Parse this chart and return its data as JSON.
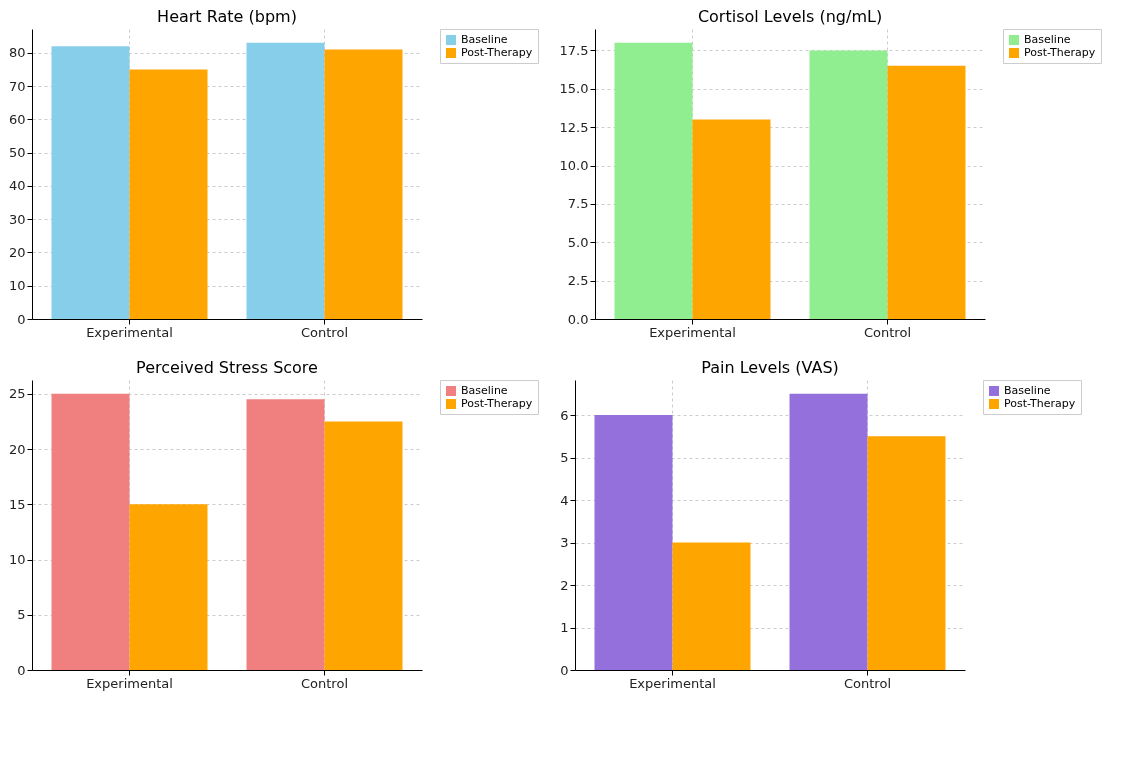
{
  "chart_data": [
    {
      "type": "bar",
      "title": "Heart Rate (bpm)",
      "categories": [
        "Experimental",
        "Control"
      ],
      "series": [
        {
          "name": "Baseline",
          "color": "#87ceeb",
          "values": [
            82,
            83
          ]
        },
        {
          "name": "Post-Therapy",
          "color": "#ffa500",
          "values": [
            75,
            81
          ]
        }
      ],
      "ylim": [
        0,
        87.15
      ],
      "yticks": [
        0,
        10,
        20,
        30,
        40,
        50,
        60,
        70,
        80
      ],
      "grid": true,
      "legend": "top right"
    },
    {
      "type": "bar",
      "title": "Cortisol Levels (ng/mL)",
      "categories": [
        "Experimental",
        "Control"
      ],
      "series": [
        {
          "name": "Baseline",
          "color": "#90ee90",
          "values": [
            18,
            17.5
          ]
        },
        {
          "name": "Post-Therapy",
          "color": "#ffa500",
          "values": [
            13,
            16.5
          ]
        }
      ],
      "ylim": [
        0,
        18.9
      ],
      "yticks": [
        {
          "value": 0,
          "label": "0.0"
        },
        {
          "value": 2.5,
          "label": "2.5"
        },
        {
          "value": 5,
          "label": "5.0"
        },
        {
          "value": 7.5,
          "label": "7.5"
        },
        {
          "value": 10,
          "label": "10.0"
        },
        {
          "value": 12.5,
          "label": "12.5"
        },
        {
          "value": 15,
          "label": "15.0"
        },
        {
          "value": 17.5,
          "label": "17.5"
        }
      ],
      "grid": true,
      "legend": "top right"
    },
    {
      "type": "bar",
      "title": "Perceived Stress Score",
      "categories": [
        "Experimental",
        "Control"
      ],
      "series": [
        {
          "name": "Baseline",
          "color": "#f08080",
          "values": [
            25,
            24.5
          ]
        },
        {
          "name": "Post-Therapy",
          "color": "#ffa500",
          "values": [
            15,
            22.5
          ]
        }
      ],
      "ylim": [
        0,
        26.25
      ],
      "yticks": [
        0,
        5,
        10,
        15,
        20,
        25
      ],
      "grid": true,
      "legend": "top right"
    },
    {
      "type": "bar",
      "title": "Pain Levels (VAS)",
      "categories": [
        "Experimental",
        "Control"
      ],
      "series": [
        {
          "name": "Baseline",
          "color": "#9370db",
          "values": [
            6,
            6.5
          ]
        },
        {
          "name": "Post-Therapy",
          "color": "#ffa500",
          "values": [
            3,
            5.5
          ]
        }
      ],
      "ylim": [
        0,
        6.825
      ],
      "yticks": [
        0,
        1,
        2,
        3,
        4,
        5,
        6
      ],
      "grid": true,
      "legend": "top right"
    }
  ]
}
